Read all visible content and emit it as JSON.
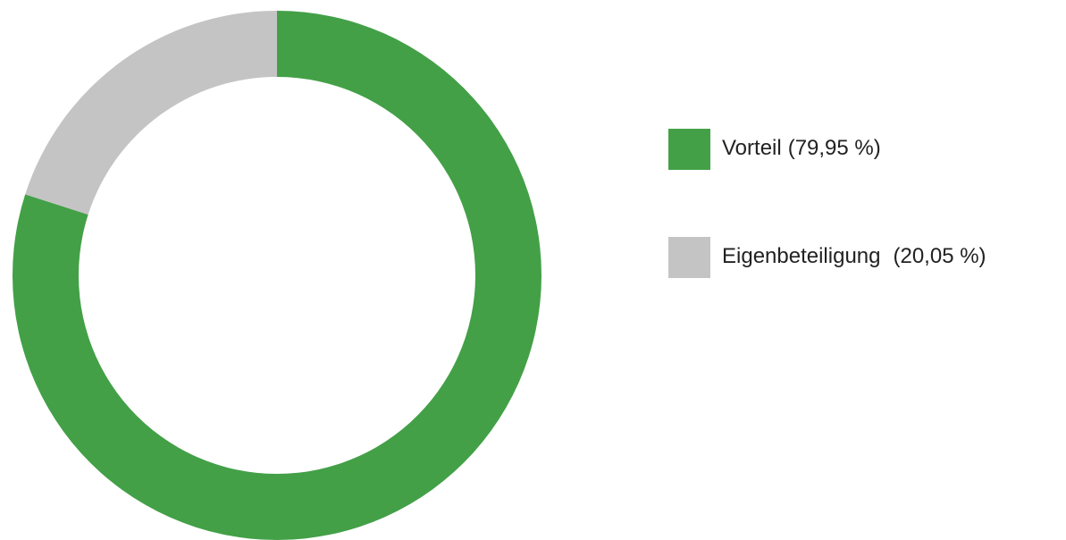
{
  "chart_data": {
    "type": "pie",
    "donut": true,
    "categories": [
      "Vorteil",
      "Eigenbeteiligung"
    ],
    "values": [
      79.95,
      20.05
    ],
    "value_labels": [
      "(79,95 %)",
      "(20,05 %)"
    ],
    "colors": [
      "#43a047",
      "#c4c4c4"
    ]
  }
}
